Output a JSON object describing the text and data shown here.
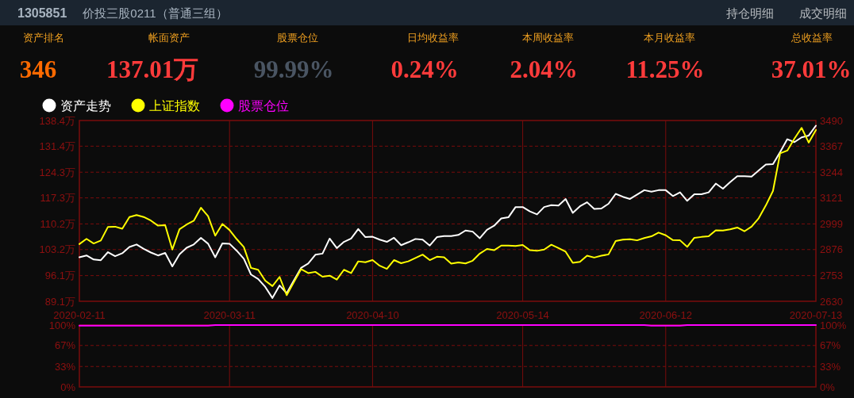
{
  "chart_data": [
    {
      "type": "other",
      "title": "1305851",
      "subtitle": "价投三股0211（普通三组）",
      "annotations": [
        "持仓明细",
        "成交明细",
        "资产排名",
        "346",
        "帐面资产",
        "137.01万",
        "股票仓位",
        "99.99%",
        "日均收益率",
        "0.24%",
        "本周收益率",
        "2.04%",
        "本月收益率",
        "11.25%",
        "总收益率",
        "37.01%"
      ],
      "colors": [
        "#ff6a00",
        "#ff3b3b",
        "#4a5563",
        "#ff3b3b",
        "#ff3b3b",
        "#ff3b3b",
        "#ff3b3b"
      ]
    },
    {
      "type": "line",
      "categories": [
        "2020-02-11",
        null,
        null,
        null,
        null,
        null,
        null,
        null,
        null,
        null,
        null,
        null,
        null,
        null,
        null,
        null,
        null,
        null,
        null,
        null,
        null,
        "2020-03-11",
        null,
        null,
        null,
        null,
        null,
        null,
        null,
        null,
        null,
        null,
        null,
        null,
        null,
        null,
        null,
        null,
        null,
        null,
        null,
        "2020-04-10",
        null,
        null,
        null,
        null,
        null,
        null,
        null,
        null,
        null,
        null,
        null,
        null,
        null,
        null,
        null,
        null,
        null,
        null,
        null,
        null,
        "2020-05-14",
        null,
        null,
        null,
        null,
        null,
        null,
        null,
        null,
        null,
        null,
        null,
        null,
        null,
        null,
        null,
        null,
        null,
        null,
        null,
        "2020-06-12",
        null,
        null,
        null,
        null,
        null,
        null,
        null,
        null,
        null,
        null,
        null,
        null,
        null,
        null,
        null,
        null,
        null,
        null,
        null,
        null,
        "2020-07-13"
      ],
      "series": [
        {
          "name": "资产走势",
          "color": "#ffffff",
          "values": [
            101.1,
            101.6,
            100.5,
            100.3,
            102.5,
            101.4,
            102.2,
            103.9,
            104.6,
            103.4,
            102.4,
            101.6,
            102.3,
            98.6,
            101.9,
            103.7,
            104.6,
            106.4,
            104.8,
            101.1,
            104.9,
            104.8,
            102.9,
            100.7,
            96.4,
            95.2,
            93.0,
            90.0,
            93.4,
            91.3,
            94.8,
            98.2,
            99.4,
            101.8,
            102.1,
            106.2,
            103.6,
            105.3,
            106.2,
            108.8,
            106.6,
            106.7,
            105.9,
            105.3,
            106.4,
            104.4,
            105.2,
            106.1,
            105.9,
            104.3,
            106.6,
            106.9,
            106.9,
            107.2,
            108.4,
            108.1,
            106.3,
            108.6,
            109.7,
            111.7,
            112.0,
            114.8,
            114.8,
            113.6,
            112.8,
            114.8,
            115.3,
            115.2,
            117.0,
            113.2,
            115.0,
            116.1,
            114.3,
            114.4,
            115.7,
            118.4,
            117.6,
            117.0,
            118.2,
            119.4,
            119.0,
            119.4,
            119.4,
            117.8,
            118.8,
            116.5,
            118.3,
            118.3,
            118.8,
            121.2,
            119.8,
            121.6,
            123.2,
            123.2,
            123.1,
            124.8,
            126.4,
            126.5,
            129.8,
            133.3,
            132.5,
            133.8,
            134.3,
            137.0
          ]
        },
        {
          "name": "上证指数",
          "color": "#ffff00",
          "axis": "y2",
          "values": [
            2902,
            2927,
            2905,
            2919,
            2984,
            2985,
            2975,
            3031,
            3040,
            3031,
            3014,
            2990,
            2992,
            2876,
            2973,
            2995,
            3013,
            3075,
            3035,
            2942,
            2998,
            2969,
            2926,
            2888,
            2789,
            2780,
            2728,
            2702,
            2746,
            2659,
            2721,
            2783,
            2764,
            2770,
            2747,
            2752,
            2733,
            2780,
            2764,
            2820,
            2816,
            2826,
            2799,
            2784,
            2826,
            2811,
            2820,
            2836,
            2852,
            2826,
            2842,
            2839,
            2809,
            2815,
            2810,
            2823,
            2857,
            2879,
            2873,
            2895,
            2895,
            2893,
            2898,
            2873,
            2870,
            2876,
            2899,
            2883,
            2866,
            2813,
            2818,
            2847,
            2838,
            2847,
            2853,
            2917,
            2923,
            2925,
            2920,
            2931,
            2939,
            2957,
            2944,
            2921,
            2920,
            2889,
            2932,
            2936,
            2939,
            2968,
            2967,
            2972,
            2981,
            2963,
            2985,
            3025,
            3086,
            3155,
            3334,
            3347,
            3404,
            3455,
            3385,
            3445
          ]
        }
      ],
      "ylim": [
        89.1,
        138.4
      ],
      "yticks": [
        {
          "value": 89.1,
          "label": "89.1万"
        },
        {
          "value": 96.1,
          "label": "96.1万"
        },
        {
          "value": 103.2,
          "label": "103.2万"
        },
        {
          "value": 110.2,
          "label": "110.2万"
        },
        {
          "value": 117.3,
          "label": "117.3万"
        },
        {
          "value": 124.3,
          "label": "124.3万"
        },
        {
          "value": 131.4,
          "label": "131.4万"
        },
        {
          "value": 138.4,
          "label": "138.4万"
        }
      ],
      "y2lim": [
        2630,
        3490
      ],
      "y2ticks": [
        2630,
        2753,
        2876,
        2999,
        3121,
        3244,
        3367,
        3490
      ],
      "grid": true,
      "legend": "top left",
      "marker": "none",
      "line_style": "solid"
    },
    {
      "type": "line",
      "categories": [
        "2020-02-11",
        null,
        null,
        null,
        null,
        null,
        null,
        null,
        null,
        null,
        null,
        null,
        null,
        null,
        null,
        null,
        null,
        null,
        null,
        null,
        null,
        "2020-03-11",
        null,
        null,
        null,
        null,
        null,
        null,
        null,
        null,
        null,
        null,
        null,
        null,
        null,
        null,
        null,
        null,
        null,
        null,
        null,
        "2020-04-10",
        null,
        null,
        null,
        null,
        null,
        null,
        null,
        null,
        null,
        null,
        null,
        null,
        null,
        null,
        null,
        null,
        null,
        null,
        null,
        null,
        "2020-05-14",
        null,
        null,
        null,
        null,
        null,
        null,
        null,
        null,
        null,
        null,
        null,
        null,
        null,
        null,
        null,
        null,
        null,
        null,
        null,
        "2020-06-12",
        null,
        null,
        null,
        null,
        null,
        null,
        null,
        null,
        null,
        null,
        null,
        null,
        null,
        null,
        null,
        null,
        null,
        null,
        null,
        null,
        "2020-07-13"
      ],
      "series": [
        {
          "name": "股票仓位",
          "color": "#ff00ff",
          "values": [
            99,
            99,
            99,
            99,
            99,
            99,
            99,
            99,
            99,
            99,
            99,
            99,
            99,
            99,
            99,
            99,
            99,
            99,
            99,
            100,
            100,
            100,
            100,
            100,
            100,
            100,
            100,
            100,
            100,
            100,
            100,
            100,
            100,
            100,
            100,
            100,
            100,
            100,
            100,
            100,
            100,
            100,
            100,
            100,
            100,
            100,
            100,
            100,
            100,
            100,
            100,
            100,
            100,
            100,
            100,
            100,
            100,
            100,
            100,
            100,
            100,
            100,
            100,
            100,
            100,
            100,
            100,
            100,
            100,
            100,
            100,
            100,
            100,
            100,
            100,
            100,
            100,
            100,
            100,
            100,
            99,
            99,
            99,
            99,
            99,
            100,
            100,
            100,
            100,
            100,
            100,
            100,
            100,
            100,
            100,
            100,
            100,
            100,
            100,
            100,
            100,
            100,
            100,
            100
          ]
        }
      ],
      "ylim": [
        0,
        100
      ],
      "yticks": [
        {
          "value": 0,
          "label": "0%"
        },
        {
          "value": 33,
          "label": "33%"
        },
        {
          "value": 67,
          "label": "67%"
        },
        {
          "value": 100,
          "label": "100%"
        }
      ],
      "y2lim": [
        0,
        100
      ],
      "y2ticks": [
        {
          "value": 0,
          "label": "0%"
        },
        {
          "value": 33,
          "label": "33%"
        },
        {
          "value": 67,
          "label": "67%"
        },
        {
          "value": 100,
          "label": "100%"
        }
      ],
      "tick_labels": "y",
      "grid": true,
      "legend": "top left",
      "marker": "none",
      "line_style": "solid"
    }
  ]
}
